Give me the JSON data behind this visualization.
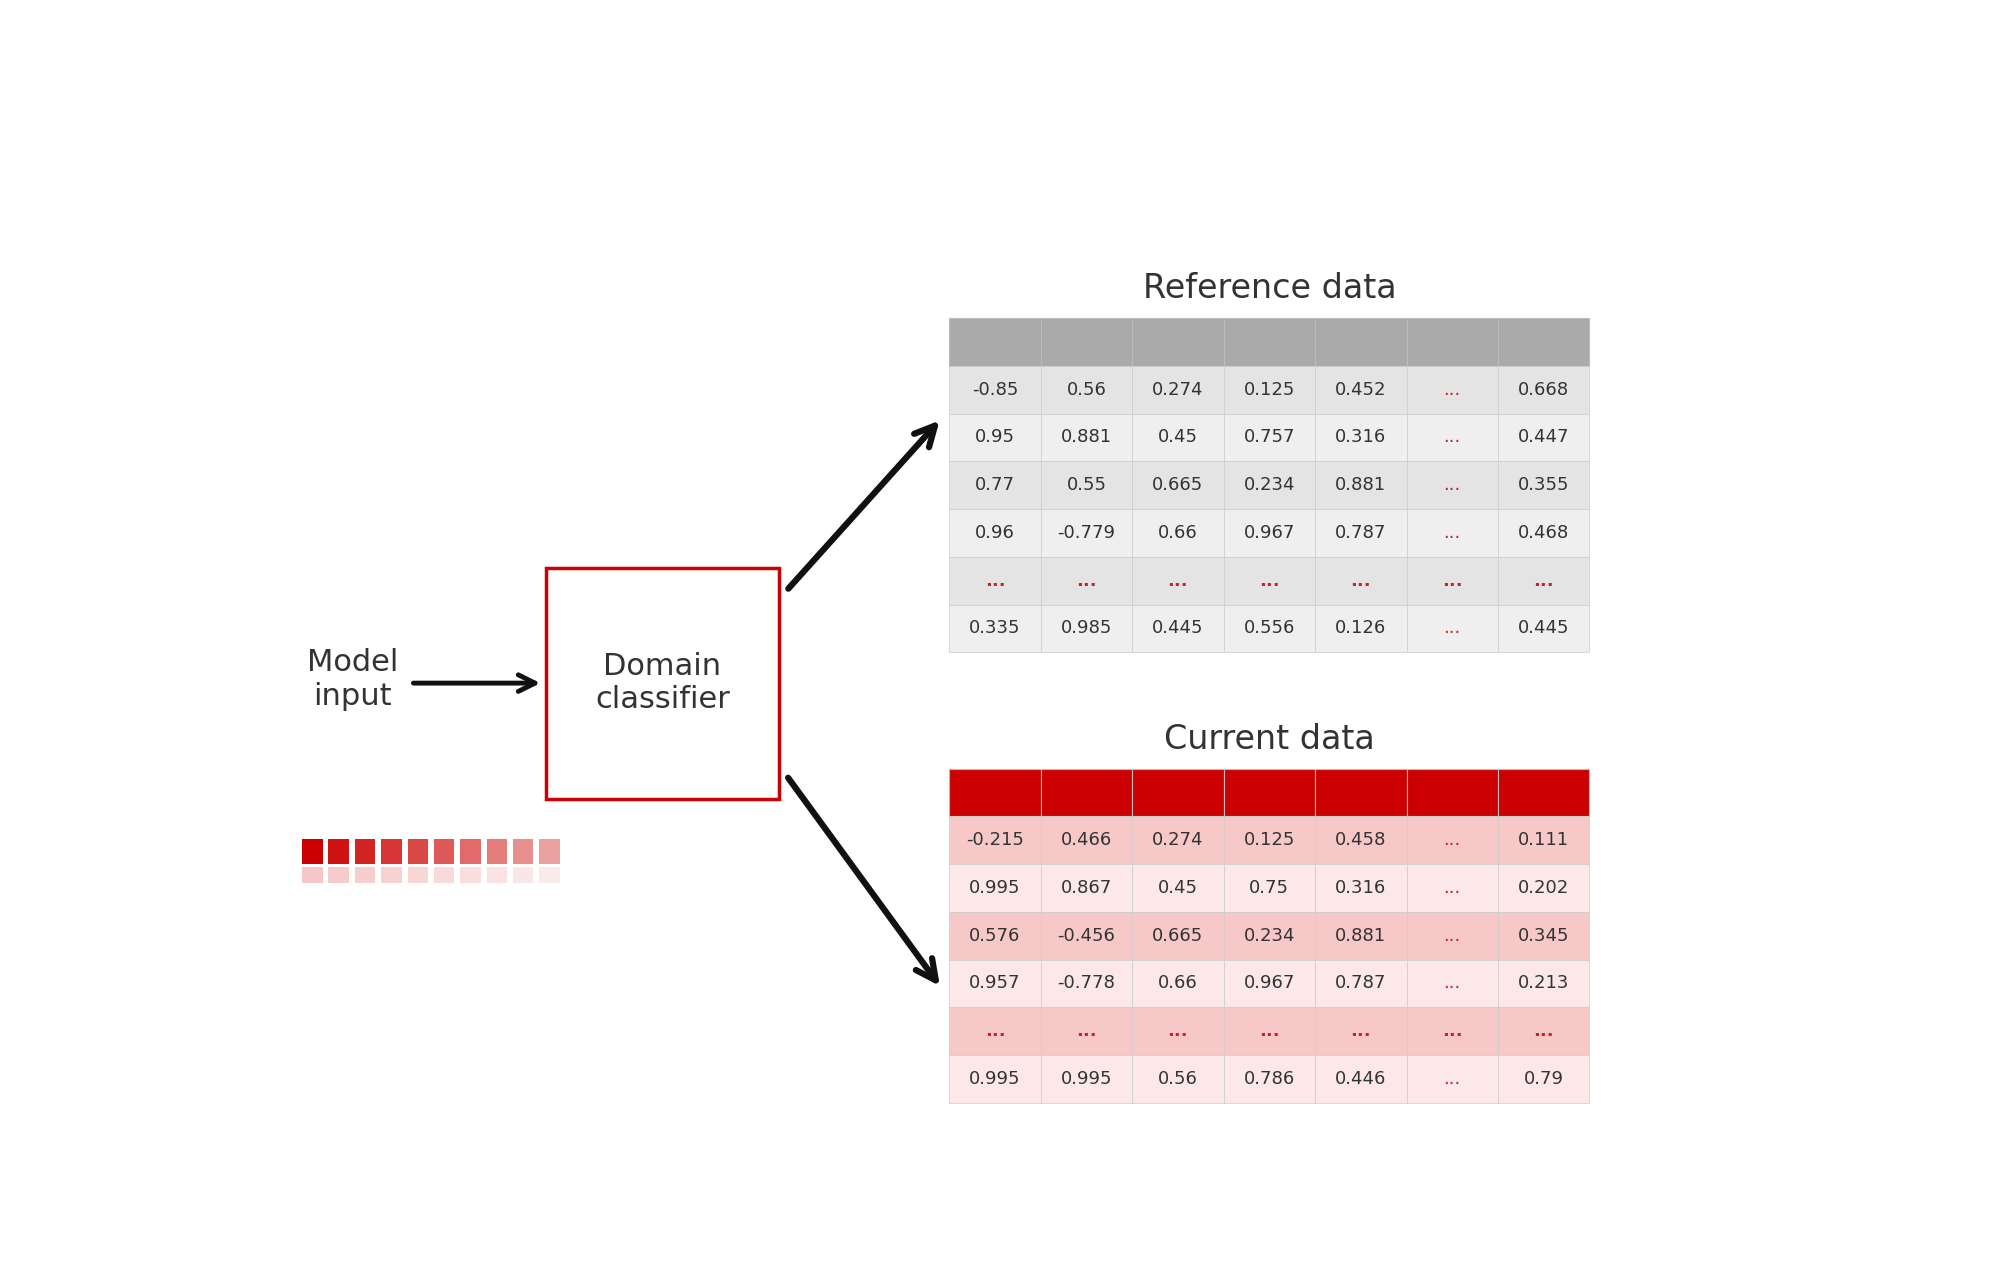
{
  "ref_title": "Reference data",
  "cur_title": "Current data",
  "ref_header_color": "#aaaaaa",
  "cur_header_color": "#cc0000",
  "ref_row_colors": [
    "#e4e4e4",
    "#efefef"
  ],
  "cur_row_colors": [
    "#f7c8c8",
    "#fce8e8"
  ],
  "ref_dots_color": "#cc2222",
  "cur_dots_color": "#cc2222",
  "ref_data": [
    [
      "-0.85",
      "0.56",
      "0.274",
      "0.125",
      "0.452",
      "...",
      "0.668"
    ],
    [
      "0.95",
      "0.881",
      "0.45",
      "0.757",
      "0.316",
      "...",
      "0.447"
    ],
    [
      "0.77",
      "0.55",
      "0.665",
      "0.234",
      "0.881",
      "...",
      "0.355"
    ],
    [
      "0.96",
      "-0.779",
      "0.66",
      "0.967",
      "0.787",
      "...",
      "0.468"
    ],
    [
      "...",
      "...",
      "...",
      "...",
      "...",
      "...",
      "..."
    ],
    [
      "0.335",
      "0.985",
      "0.445",
      "0.556",
      "0.126",
      "...",
      "0.445"
    ]
  ],
  "cur_data": [
    [
      "-0.215",
      "0.466",
      "0.274",
      "0.125",
      "0.458",
      "...",
      "0.111"
    ],
    [
      "0.995",
      "0.867",
      "0.45",
      "0.75",
      "0.316",
      "...",
      "0.202"
    ],
    [
      "0.576",
      "-0.456",
      "0.665",
      "0.234",
      "0.881",
      "...",
      "0.345"
    ],
    [
      "0.957",
      "-0.778",
      "0.66",
      "0.967",
      "0.787",
      "...",
      "0.213"
    ],
    [
      "...",
      "...",
      "...",
      "...",
      "...",
      "...",
      "..."
    ],
    [
      "0.995",
      "0.995",
      "0.56",
      "0.786",
      "0.446",
      "...",
      "0.79"
    ]
  ],
  "model_input_label": "Model\ninput",
  "classifier_label": "Domain\nclassifier",
  "background_color": "#ffffff",
  "text_color": "#333333",
  "arrow_color": "#111111",
  "box_edge_color": "#cc0000"
}
